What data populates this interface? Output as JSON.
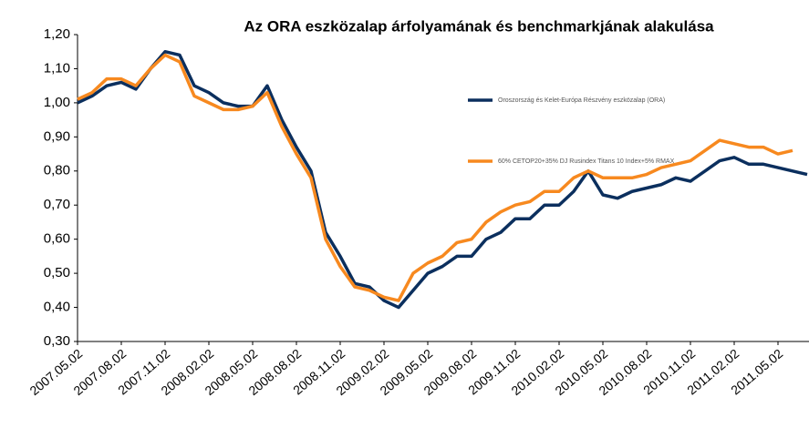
{
  "chart_data": {
    "type": "line",
    "title": "Az ORA eszközalap árfolyamának és benchmarkjának alakulása",
    "x": [
      "2007.05.02",
      null,
      null,
      "2007.08.02",
      null,
      null,
      "2007.11.02",
      null,
      null,
      "2008.02.02",
      null,
      null,
      "2008.05.02",
      null,
      null,
      "2008.08.02",
      null,
      null,
      "2008.11.02",
      null,
      null,
      "2009.02.02",
      null,
      null,
      "2009.05.02",
      null,
      null,
      "2009.08.02",
      null,
      null,
      "2009.11.02",
      null,
      null,
      "2010.02.02",
      null,
      null,
      "2010.05.02",
      null,
      null,
      "2010.08.02",
      null,
      null,
      "2010.11.02",
      null,
      null,
      "2011.02.02",
      null,
      null,
      "2011.05.02",
      null,
      null
    ],
    "series": [
      {
        "name": "Oroszország és Kelet-Európa Részvény eszközalap (ORA)",
        "color": "#0b2f5e",
        "values": [
          1.0,
          1.02,
          1.05,
          1.06,
          1.04,
          1.1,
          1.15,
          1.14,
          1.05,
          1.03,
          1.0,
          0.99,
          0.99,
          1.05,
          0.95,
          0.87,
          0.8,
          0.62,
          0.55,
          0.47,
          0.46,
          0.42,
          0.4,
          0.45,
          0.5,
          0.52,
          0.55,
          0.55,
          0.6,
          0.62,
          0.66,
          0.66,
          0.7,
          0.7,
          0.74,
          0.8,
          0.73,
          0.72,
          0.74,
          0.75,
          0.76,
          0.78,
          0.77,
          0.8,
          0.83,
          0.84,
          0.82,
          0.82,
          0.81,
          0.8,
          0.79
        ]
      },
      {
        "name": "60% CETOP20+35% DJ Rusindex Titans 10 Index+5% RMAX",
        "color": "#f7891f",
        "values": [
          1.01,
          1.03,
          1.07,
          1.07,
          1.05,
          1.1,
          1.14,
          1.12,
          1.02,
          1.0,
          0.98,
          0.98,
          0.99,
          1.03,
          0.93,
          0.85,
          0.78,
          0.6,
          0.52,
          0.46,
          0.45,
          0.43,
          0.42,
          0.5,
          0.53,
          0.55,
          0.59,
          0.6,
          0.65,
          0.68,
          0.7,
          0.71,
          0.74,
          0.74,
          0.78,
          0.8,
          0.78,
          0.78,
          0.78,
          0.79,
          0.81,
          0.82,
          0.83,
          0.86,
          0.89,
          0.88,
          0.87,
          0.87,
          0.85,
          0.86,
          null
        ]
      }
    ],
    "ylim": [
      0.3,
      1.2
    ],
    "yticks": [
      {
        "value": 0.3,
        "label": "0,30"
      },
      {
        "value": 0.4,
        "label": "0,40"
      },
      {
        "value": 0.5,
        "label": "0,50"
      },
      {
        "value": 0.6,
        "label": "0,60"
      },
      {
        "value": 0.7,
        "label": "0,70"
      },
      {
        "value": 0.8,
        "label": "0,80"
      },
      {
        "value": 0.9,
        "label": "0,90"
      },
      {
        "value": 1.0,
        "label": "1,00"
      },
      {
        "value": 1.1,
        "label": "1,10"
      },
      {
        "value": 1.2,
        "label": "1,20"
      }
    ],
    "grid": false
  }
}
